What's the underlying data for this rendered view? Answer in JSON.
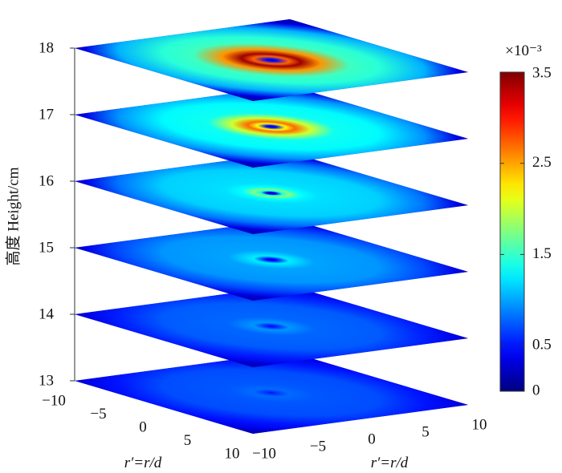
{
  "chart_data": {
    "type": "heatmap",
    "title": "",
    "zlabel": "高度 Height/cm",
    "xlabel": "r′=r/d",
    "ylabel": "r′=r/d",
    "xlim": [
      -10,
      10
    ],
    "ylim": [
      -10,
      10
    ],
    "zlim": [
      13,
      18
    ],
    "x_ticks": [
      "−10",
      "−5",
      "0",
      "5",
      "10"
    ],
    "y_ticks": [
      "−10",
      "−5",
      "0",
      "5",
      "10"
    ],
    "z_ticks": [
      "13",
      "14",
      "15",
      "16",
      "17",
      "18"
    ],
    "slices": [
      {
        "height": 13,
        "background": 0.7,
        "peak": 0.8,
        "ring_radius": 0,
        "center_value": 0.45
      },
      {
        "height": 14,
        "background": 0.75,
        "peak": 0.95,
        "ring_radius": 0,
        "center_value": 0.4
      },
      {
        "height": 15,
        "background": 0.95,
        "peak": 1.25,
        "ring_radius": 0,
        "center_value": 0.3
      },
      {
        "height": 16,
        "background": 1.15,
        "peak": 1.75,
        "ring_radius": 1.2,
        "center_value": 0.2
      },
      {
        "height": 17,
        "background": 1.3,
        "peak": 2.7,
        "ring_radius": 1.6,
        "center_value": 0.3
      },
      {
        "height": 18,
        "background": 1.45,
        "peak": 3.4,
        "ring_radius": 2.0,
        "center_value": 0.3
      }
    ],
    "colorbar": {
      "colormap": "jet",
      "range": [
        0,
        3.5
      ],
      "ticks": [
        "0",
        "0.5",
        "1.5",
        "2.5",
        "3.5"
      ],
      "tick_values": [
        0,
        0.5,
        1.5,
        2.5,
        3.5
      ],
      "exponent": "×10⁻³"
    }
  }
}
